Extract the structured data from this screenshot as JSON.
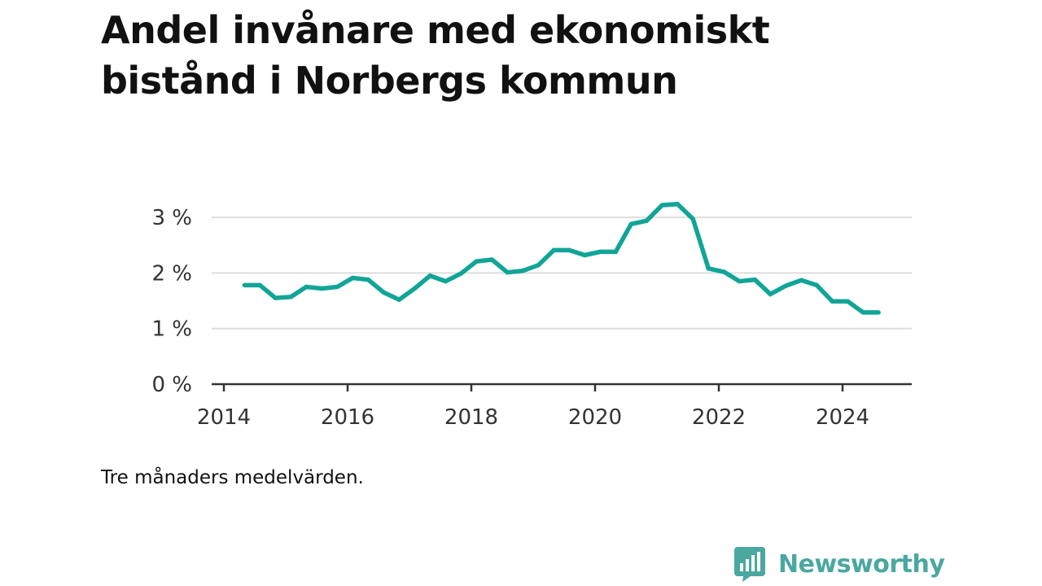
{
  "title": "Andel invånare med ekonomiskt bistånd i Norbergs kommun",
  "note": "Tre månaders medelvärden.",
  "brand": {
    "name": "Newsworthy",
    "color": "#4aa8a0"
  },
  "chart_data": {
    "type": "line",
    "title": "",
    "xlabel": "",
    "ylabel": "",
    "color": "#11a597",
    "gridlines": true,
    "xlim": [
      2014,
      2025.2
    ],
    "ylim": [
      0,
      3
    ],
    "x_ticks": [
      2014,
      2016,
      2018,
      2020,
      2022,
      2024
    ],
    "x_tick_labels": [
      "2014",
      "2016",
      "2018",
      "2020",
      "2022",
      "2024"
    ],
    "y_ticks": [
      0,
      1,
      2,
      3
    ],
    "y_tick_labels": [
      "0 %",
      "1 %",
      "2 %",
      "3 %"
    ],
    "series": [
      {
        "x": [
          "2014-05",
          "2014-08",
          "2014-11",
          "2015-02",
          "2015-05",
          "2015-08",
          "2015-11",
          "2016-02",
          "2016-05",
          "2016-08",
          "2016-11",
          "2017-02",
          "2017-05",
          "2017-08",
          "2017-11",
          "2018-02",
          "2018-05",
          "2018-08",
          "2018-11",
          "2019-02",
          "2019-05",
          "2019-08",
          "2019-11",
          "2020-02",
          "2020-05",
          "2020-08",
          "2020-11",
          "2021-02",
          "2021-05",
          "2021-08",
          "2021-11",
          "2022-02",
          "2022-05",
          "2022-08",
          "2022-11",
          "2023-02",
          "2023-05",
          "2023-08",
          "2023-11",
          "2024-02",
          "2024-05",
          "2024-08"
        ],
        "values": [
          1.78,
          1.78,
          1.55,
          1.57,
          1.75,
          1.72,
          1.75,
          1.91,
          1.88,
          1.65,
          1.52,
          1.72,
          1.95,
          1.85,
          1.99,
          2.21,
          2.24,
          2.01,
          2.04,
          2.14,
          2.41,
          2.41,
          2.32,
          2.38,
          2.38,
          2.88,
          2.94,
          3.22,
          3.24,
          2.97,
          2.08,
          2.02,
          1.85,
          1.88,
          1.62,
          1.77,
          1.87,
          1.78,
          1.49,
          1.49,
          1.29,
          1.29
        ]
      }
    ]
  }
}
